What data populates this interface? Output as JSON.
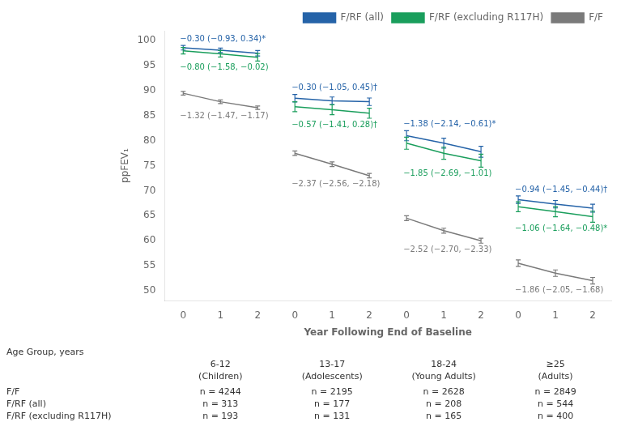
{
  "chart_data": {
    "type": "line",
    "xlabel": "Year Following End of Baseline",
    "ylabel": "ppFEV₁",
    "groups": [
      {
        "label": "6-12",
        "sublabel": "(Children)",
        "categories": [
          "0",
          "1",
          "2"
        ]
      },
      {
        "label": "13-17",
        "sublabel": "(Adolescents)",
        "categories": [
          "0",
          "1",
          "2"
        ]
      },
      {
        "label": "18-24",
        "sublabel": "(Young Adults)",
        "categories": [
          "0",
          "1",
          "2"
        ]
      },
      {
        "label": "≥25",
        "sublabel": "(Adults)",
        "categories": [
          "0",
          "1",
          "2"
        ]
      }
    ],
    "series": [
      {
        "name": "F/RF (all)",
        "color": "#2563a8",
        "values": [
          98.6,
          98.1,
          97.5,
          88.5,
          88.0,
          87.8,
          81.0,
          79.5,
          77.8,
          68.2,
          67.3,
          66.5
        ],
        "errors": [
          0.45,
          0.45,
          0.55,
          0.75,
          0.75,
          0.75,
          1.0,
          1.0,
          1.1,
          0.75,
          0.75,
          0.8
        ],
        "annotations": [
          "−0.30 (−0.93, 0.34)*",
          "−0.30 (−1.05, 0.45)†",
          "−1.38 (−2.14, −0.61)*",
          "−0.94 (−1.45, −0.44)†"
        ]
      },
      {
        "name": "F/RF (excluding R117H)",
        "color": "#1a9e5c",
        "values": [
          98.0,
          97.4,
          96.7,
          86.8,
          86.2,
          85.5,
          79.5,
          77.5,
          76.0,
          66.8,
          65.8,
          64.8
        ],
        "errors": [
          0.65,
          0.65,
          0.75,
          1.0,
          1.0,
          1.0,
          1.2,
          1.2,
          1.3,
          1.0,
          1.0,
          1.1
        ],
        "annotations": [
          "−0.80 (−1.58, −0.02)",
          "−0.57 (−1.41, 0.28)†",
          "−1.85 (−2.69, −1.01)",
          "−1.06 (−1.64, −0.48)*"
        ]
      },
      {
        "name": "F/F",
        "color": "#7a7a7a",
        "values": [
          89.5,
          87.8,
          86.6,
          77.5,
          75.3,
          73.0,
          64.5,
          62.0,
          60.0,
          55.5,
          53.5,
          52.0
        ],
        "errors": [
          0.35,
          0.35,
          0.35,
          0.45,
          0.45,
          0.45,
          0.5,
          0.5,
          0.5,
          0.65,
          0.65,
          0.65
        ],
        "annotations": [
          "−1.32 (−1.47, −1.17)",
          "−2.37 (−2.56, −2.18)",
          "−2.52 (−2.70, −2.33)",
          "−1.86 (−2.05, −1.68)"
        ]
      }
    ],
    "table": {
      "header": "Age Group, years",
      "rows": [
        {
          "label": "F/F",
          "values": [
            "n = 4244",
            "n = 2195",
            "n = 2628",
            "n = 2849"
          ]
        },
        {
          "label": "F/RF (all)",
          "values": [
            "n = 313",
            "n = 177",
            "n = 208",
            "n = 544"
          ]
        },
        {
          "label": "F/RF (excluding R117H)",
          "values": [
            "n = 193",
            "n = 131",
            "n = 165",
            "n = 400"
          ]
        }
      ]
    },
    "ylim": [
      48,
      102
    ],
    "yticks": [
      50,
      55,
      60,
      65,
      70,
      75,
      80,
      85,
      90,
      95,
      100
    ],
    "grid": false,
    "legend": "upper right"
  }
}
